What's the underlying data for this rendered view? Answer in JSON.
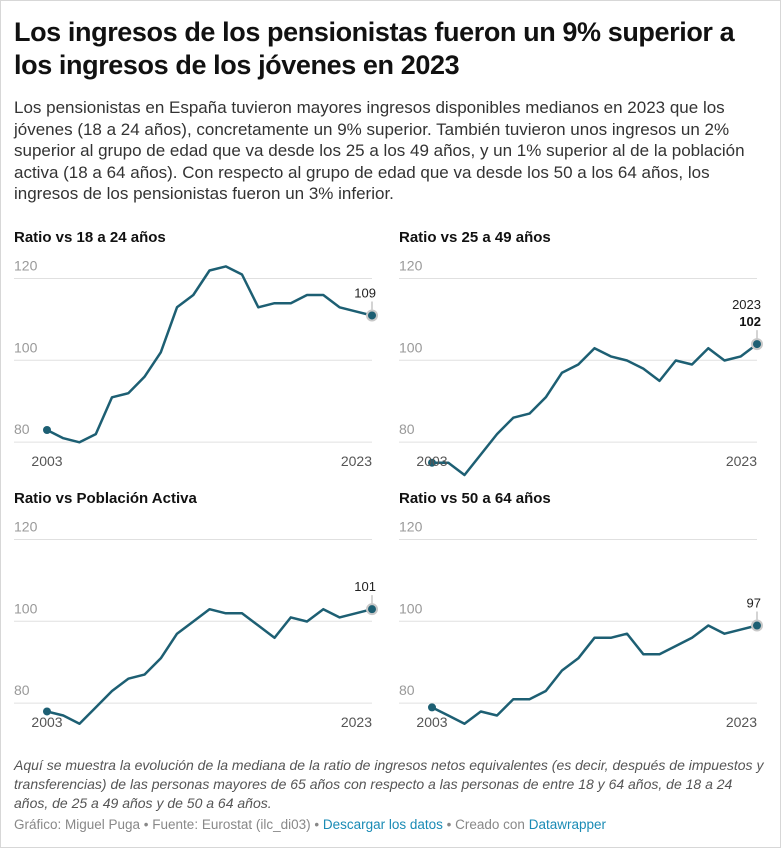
{
  "header": {
    "title": "Los ingresos de los pensionistas fueron un 9% superior a los ingresos de los jóvenes en 2023",
    "intro": "Los pensionistas en España tuvieron mayores ingresos disponibles medianos en 2023 que los jóvenes (18 a 24 años), concretamente un 9% superior. También tuvieron unos ingresos un 2% superior al grupo de edad que va desde los 25 a los 49 años, y un 1% superior al de la población activa (18 a 64 años). Con respecto al grupo de edad que va desde los 50 a los 64 años, los ingresos de los pensionistas fueron un 3% inferior."
  },
  "colors": {
    "line": "#1d5f73",
    "grid": "#e0e0e0",
    "endpoint_fill": "#1d5f73",
    "endpoint_ring": "#c8c8c8"
  },
  "chart_data": [
    {
      "type": "line",
      "title": "Ratio vs 18 a 24 años",
      "x": [
        2003,
        2004,
        2005,
        2006,
        2007,
        2008,
        2009,
        2010,
        2011,
        2012,
        2013,
        2014,
        2015,
        2016,
        2017,
        2018,
        2019,
        2020,
        2021,
        2022,
        2023
      ],
      "values": [
        81,
        79,
        78,
        80,
        89,
        90,
        94,
        100,
        111,
        114,
        120,
        121,
        119,
        111,
        112,
        112,
        114,
        114,
        111,
        110,
        109
      ],
      "ylim": [
        70,
        125
      ],
      "yticks": [
        80,
        100,
        120
      ],
      "xtick_labels": [
        "2003",
        "2023"
      ],
      "end_label": "109",
      "end_year_label": ""
    },
    {
      "type": "line",
      "title": "Ratio vs 25 a 49 años",
      "x": [
        2003,
        2004,
        2005,
        2006,
        2007,
        2008,
        2009,
        2010,
        2011,
        2012,
        2013,
        2014,
        2015,
        2016,
        2017,
        2018,
        2019,
        2020,
        2021,
        2022,
        2023
      ],
      "values": [
        73,
        73,
        70,
        75,
        80,
        84,
        85,
        89,
        95,
        97,
        101,
        99,
        98,
        96,
        93,
        98,
        97,
        101,
        98,
        99,
        102
      ],
      "ylim": [
        70,
        125
      ],
      "yticks": [
        80,
        100,
        120
      ],
      "xtick_labels": [
        "2003",
        "2023"
      ],
      "end_label": "102",
      "end_year_label": "2023"
    },
    {
      "type": "line",
      "title": "Ratio vs Población Activa",
      "x": [
        2003,
        2004,
        2005,
        2006,
        2007,
        2008,
        2009,
        2010,
        2011,
        2012,
        2013,
        2014,
        2015,
        2016,
        2017,
        2018,
        2019,
        2020,
        2021,
        2022,
        2023
      ],
      "values": [
        76,
        75,
        73,
        77,
        81,
        84,
        85,
        89,
        95,
        98,
        101,
        100,
        100,
        97,
        94,
        99,
        98,
        101,
        99,
        100,
        101
      ],
      "ylim": [
        70,
        125
      ],
      "yticks": [
        80,
        100,
        120
      ],
      "xtick_labels": [
        "2003",
        "2023"
      ],
      "end_label": "101",
      "end_year_label": ""
    },
    {
      "type": "line",
      "title": "Ratio vs 50 a 64 años",
      "x": [
        2003,
        2004,
        2005,
        2006,
        2007,
        2008,
        2009,
        2010,
        2011,
        2012,
        2013,
        2014,
        2015,
        2016,
        2017,
        2018,
        2019,
        2020,
        2021,
        2022,
        2023
      ],
      "values": [
        77,
        75,
        73,
        76,
        75,
        79,
        79,
        81,
        86,
        89,
        94,
        94,
        95,
        90,
        90,
        92,
        94,
        97,
        95,
        96,
        97
      ],
      "ylim": [
        70,
        125
      ],
      "yticks": [
        80,
        100,
        120
      ],
      "xtick_labels": [
        "2003",
        "2023"
      ],
      "end_label": "97",
      "end_year_label": ""
    }
  ],
  "notes": "Aquí se muestra la evolución de la mediana de la ratio de ingresos netos equivalentes (es decir, después de impuestos y transferencias) de las personas mayores de 65 años con respecto a las personas de entre 18 y 64 años, de 18 a 24 años, de 25 a 49 años y de 50 a 64 años.",
  "footer": {
    "credits": "Gráfico: Miguel Puga • Fuente: Eurostat (ilc_di03) • ",
    "download_link": "Descargar los datos",
    "separator": " • Creado con ",
    "datawrapper_link": "Datawrapper"
  }
}
